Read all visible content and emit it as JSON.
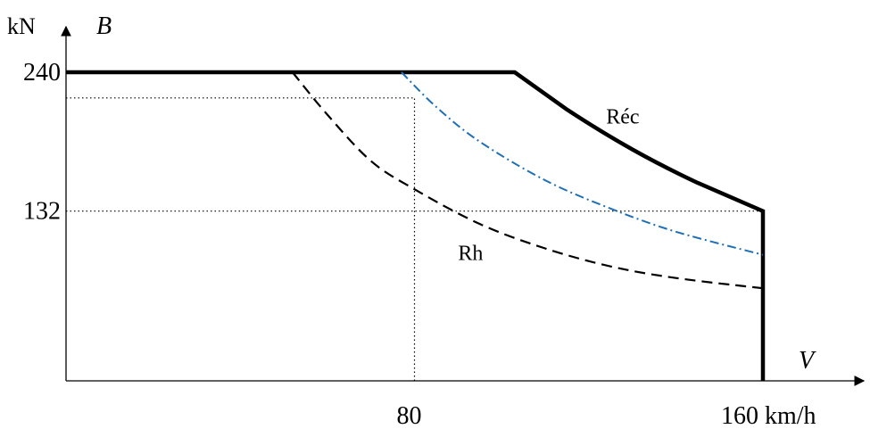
{
  "chart_data": {
    "type": "line",
    "title": "",
    "xlabel": "V",
    "ylabel": "B",
    "y_unit": "kN",
    "x_unit": "km/h",
    "xlim": [
      0,
      180
    ],
    "ylim": [
      0,
      240
    ],
    "x_ticks": [
      {
        "value": 80,
        "label": "80"
      },
      {
        "value": 160,
        "label": "160 km/h"
      }
    ],
    "y_ticks": [
      {
        "value": 240,
        "label": "240"
      },
      {
        "value": 132,
        "label": 132
      }
    ],
    "grid": false,
    "series": [
      {
        "name": "Réc",
        "style": "solid-thick",
        "color": "#000000",
        "x": [
          0,
          103,
          115,
          130,
          145,
          160,
          160
        ],
        "y": [
          240,
          240,
          211,
          180,
          154,
          132,
          0
        ]
      },
      {
        "name": "",
        "style": "dash-dot",
        "color": "#1f6fb5",
        "x": [
          77,
          85,
          95,
          110,
          125,
          140,
          160
        ],
        "y": [
          240,
          213,
          186,
          156,
          134,
          116,
          98
        ]
      },
      {
        "name": "Rh",
        "style": "dashed",
        "color": "#000000",
        "x": [
          52,
          60,
          70,
          80,
          95,
          110,
          125,
          140,
          160
        ],
        "y": [
          240,
          207,
          171,
          149,
          122,
          103,
          89,
          80,
          72
        ]
      }
    ],
    "reference_lines": [
      {
        "type": "horizontal",
        "y": 132,
        "x_from": 0,
        "x_to": 160,
        "style": "dotted"
      },
      {
        "type": "horizontal",
        "y": 220,
        "x_from": 0,
        "x_to": 80,
        "style": "dotted"
      },
      {
        "type": "vertical",
        "x": 80,
        "y_from": 0,
        "y_to": 220,
        "style": "dotted"
      }
    ],
    "annotations": [
      {
        "text": "Réc",
        "x": 124,
        "y": 200
      },
      {
        "text": "Rh",
        "x": 90,
        "y": 94
      }
    ]
  }
}
